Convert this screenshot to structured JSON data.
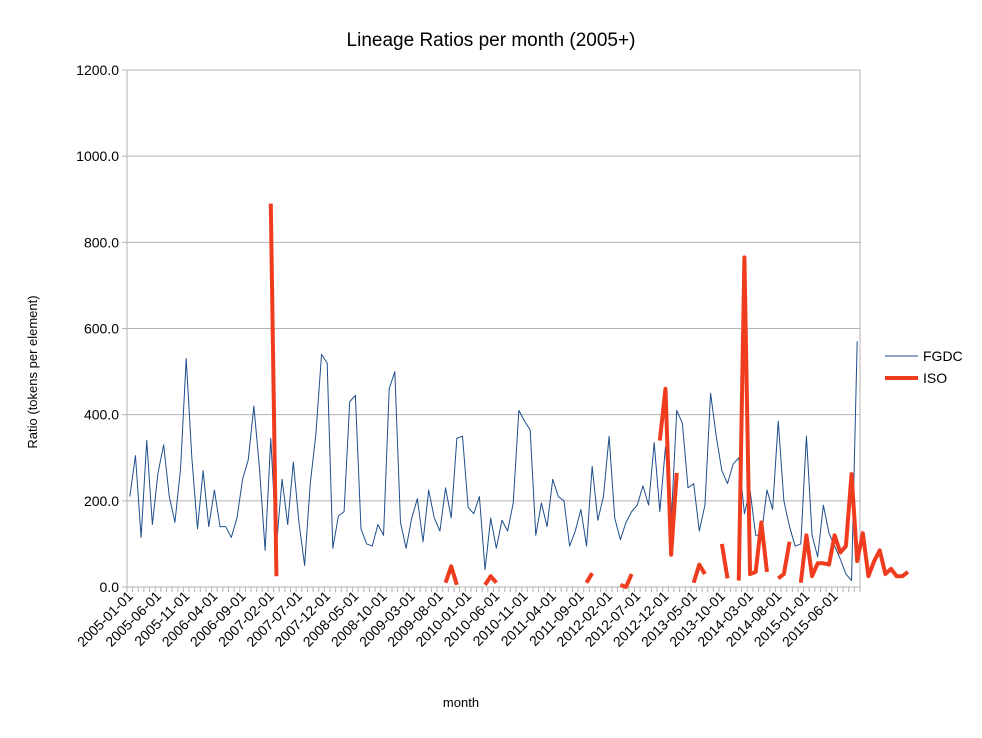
{
  "chart_data": {
    "type": "line",
    "title": "Lineage Ratios per month (2005+)",
    "xlabel": "month",
    "ylabel": "Ratio (tokens per element)",
    "ylim": [
      0,
      1200
    ],
    "yticks": [
      0,
      200,
      400,
      600,
      800,
      1000,
      1200
    ],
    "ytick_labels": [
      "0.0",
      "200.0",
      "400.0",
      "600.0",
      "800.0",
      "1000.0",
      "1200.0"
    ],
    "grid": "horizontal",
    "legend_position": "right",
    "x_tick_labels": [
      "2005-01-01",
      "2005-06-01",
      "2005-11-01",
      "2006-04-01",
      "2006-09-01",
      "2007-02-01",
      "2007-07-01",
      "2007-12-01",
      "2008-05-01",
      "2008-10-01",
      "2009-03-01",
      "2009-08-01",
      "2010-01-01",
      "2010-06-01",
      "2010-11-01",
      "2011-04-01",
      "2011-09-01",
      "2012-02-01",
      "2012-07-01",
      "2012-12-01",
      "2013-05-01",
      "2013-10-01",
      "2014-03-01",
      "2014-08-01",
      "2015-01-01",
      "2015-06-01"
    ],
    "x_start": "2005-01",
    "series": [
      {
        "name": "FGDC",
        "color": "#1f4e8c",
        "values": [
          210,
          305,
          115,
          340,
          145,
          265,
          330,
          210,
          150,
          275,
          530,
          300,
          135,
          270,
          140,
          225,
          140,
          140,
          115,
          160,
          250,
          295,
          420,
          275,
          85,
          345,
          95,
          250,
          145,
          290,
          150,
          50,
          240,
          355,
          540,
          520,
          90,
          165,
          175,
          430,
          445,
          135,
          100,
          95,
          145,
          120,
          460,
          500,
          150,
          90,
          160,
          205,
          105,
          225,
          160,
          130,
          230,
          160,
          345,
          350,
          185,
          170,
          210,
          40,
          160,
          90,
          155,
          130,
          195,
          410,
          385,
          365,
          120,
          195,
          140,
          250,
          210,
          200,
          95,
          130,
          180,
          95,
          280,
          155,
          210,
          350,
          160,
          110,
          150,
          175,
          190,
          235,
          190,
          335,
          175,
          325,
          145,
          410,
          380,
          230,
          240,
          130,
          190,
          450,
          350,
          270,
          240,
          285,
          300,
          170,
          225,
          120,
          120,
          225,
          180,
          385,
          200,
          140,
          95,
          100,
          350,
          120,
          70,
          190,
          125,
          95,
          65,
          30,
          15,
          570
        ]
      },
      {
        "name": "ISO",
        "color": "#f03c1e",
        "values": [
          null,
          null,
          null,
          null,
          null,
          null,
          null,
          null,
          null,
          null,
          null,
          null,
          null,
          null,
          null,
          null,
          null,
          null,
          null,
          null,
          null,
          null,
          null,
          null,
          null,
          890,
          25,
          null,
          null,
          null,
          null,
          null,
          null,
          null,
          null,
          null,
          null,
          null,
          null,
          null,
          null,
          null,
          null,
          null,
          null,
          null,
          null,
          null,
          null,
          null,
          null,
          null,
          null,
          null,
          null,
          null,
          10,
          48,
          5,
          null,
          null,
          null,
          null,
          5,
          25,
          10,
          null,
          null,
          null,
          null,
          null,
          null,
          null,
          null,
          null,
          null,
          null,
          null,
          null,
          null,
          null,
          10,
          32,
          null,
          null,
          null,
          null,
          5,
          0,
          30,
          null,
          null,
          null,
          null,
          340,
          460,
          75,
          265,
          null,
          null,
          10,
          52,
          30,
          null,
          null,
          100,
          20,
          null,
          15,
          765,
          30,
          35,
          150,
          35,
          null,
          20,
          30,
          105,
          null,
          10,
          120,
          25,
          55,
          55,
          52,
          120,
          80,
          95,
          262,
          60,
          125,
          25,
          60,
          85,
          30,
          42,
          25,
          25,
          35,
          null
        ]
      }
    ]
  }
}
